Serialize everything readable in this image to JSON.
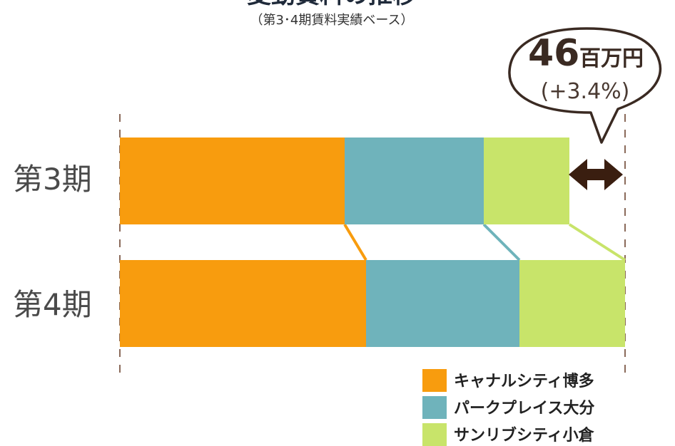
{
  "chart_data": {
    "type": "bar",
    "orientation": "horizontal",
    "stacked": true,
    "title": "変動賃料の推移",
    "subtitle": "（第3･4期賃料実績ベース）",
    "categories": [
      "第3期",
      "第4期"
    ],
    "series": [
      {
        "name": "キャナルシティ博多",
        "values": [
          315,
          345
        ],
        "color": "#f89c0e"
      },
      {
        "name": "パークプレイス大分",
        "values": [
          195,
          215
        ],
        "color": "#6fb3bb"
      },
      {
        "name": "サンリブシティ小倉",
        "values": [
          120,
          148
        ],
        "color": "#c8e46a"
      }
    ],
    "annotation": {
      "value": "46",
      "unit": "百万円",
      "percent": "(+3.4%)"
    },
    "legend_position": "bottom-right",
    "grid": false,
    "axes_visible": false
  },
  "colors": {
    "title": "#1f2a3a",
    "callout_stroke": "#3a2a22",
    "arrow": "#3a1e10",
    "dashed_line": "#8a6a5a"
  }
}
